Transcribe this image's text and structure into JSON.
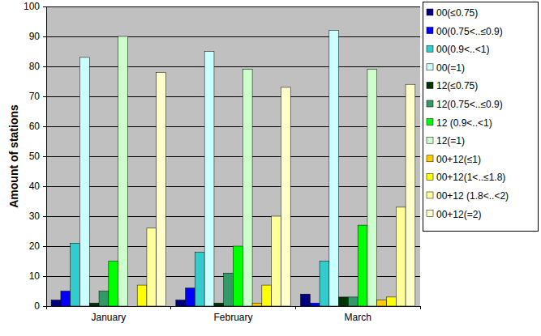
{
  "chart_data": {
    "type": "bar",
    "y_label": "Amount of stations",
    "categories": [
      "January",
      "February",
      "March"
    ],
    "series": [
      {
        "name": "00(≤0.75)",
        "color": "#000080",
        "values": [
          2,
          2,
          4
        ]
      },
      {
        "name": "00(0.75<..≤0.9)",
        "color": "#0000ff",
        "values": [
          5,
          6,
          1
        ]
      },
      {
        "name": "00(0.9<..<1)",
        "color": "#33cccc",
        "values": [
          21,
          18,
          15
        ]
      },
      {
        "name": "00(=1)",
        "color": "#ccffff",
        "values": [
          83,
          85,
          92
        ]
      },
      {
        "name": "12(≤0.75)",
        "color": "#003300",
        "values": [
          1,
          1,
          3
        ]
      },
      {
        "name": "12(0.75<..≤0.9)",
        "color": "#339966",
        "values": [
          5,
          11,
          3
        ]
      },
      {
        "name": "12 (0.9<..<1)",
        "color": "#00ff00",
        "values": [
          15,
          20,
          27
        ]
      },
      {
        "name": "12(=1)",
        "color": "#ccffcc",
        "values": [
          90,
          79,
          79
        ]
      },
      {
        "name": "00+12(≤1)",
        "color": "#ffcc00",
        "values": [
          0,
          1,
          2
        ]
      },
      {
        "name": "00+12(1<..≤1.8)",
        "color": "#ffff00",
        "values": [
          7,
          7,
          3
        ]
      },
      {
        "name": "00+12 (1.8<..<2)",
        "color": "#ffff99",
        "values": [
          26,
          30,
          33
        ]
      },
      {
        "name": "00+12(=2)",
        "color": "#ffffcc",
        "values": [
          78,
          73,
          74
        ]
      }
    ],
    "ylim": [
      0,
      100
    ],
    "yticks": [
      0,
      10,
      20,
      30,
      40,
      50,
      60,
      70,
      80,
      90,
      100
    ],
    "grid": true,
    "legend": "right"
  }
}
